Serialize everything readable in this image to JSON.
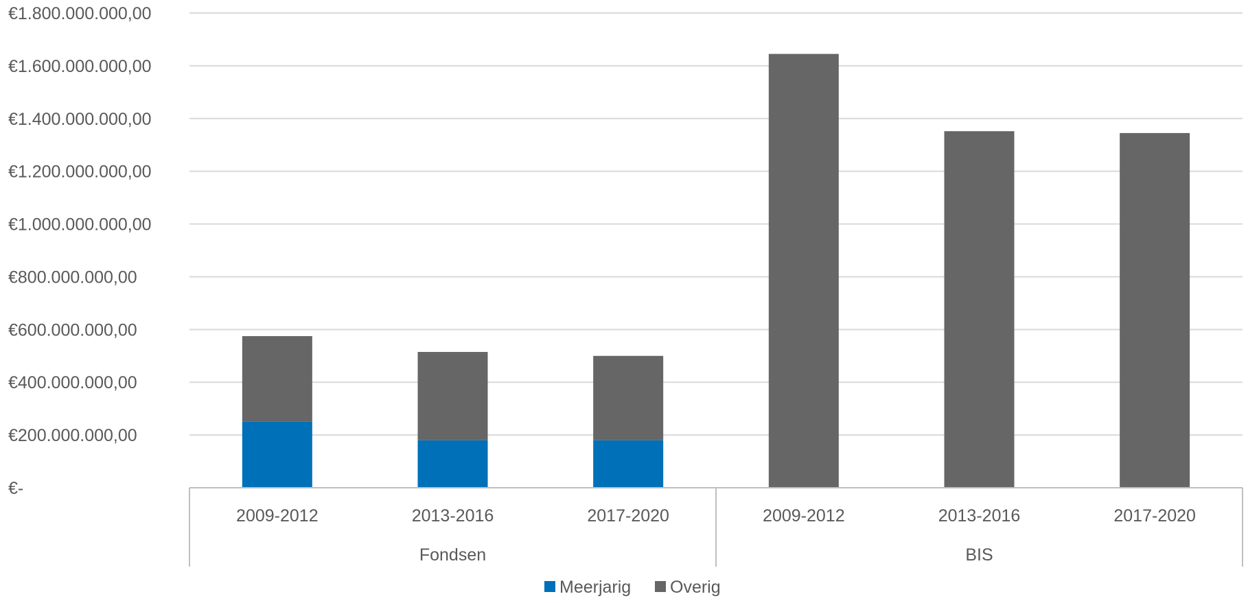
{
  "chart_data": {
    "type": "bar",
    "stacked": true,
    "groups": [
      {
        "label": "Fondsen",
        "categories": [
          "2009-2012",
          "2013-2016",
          "2017-2020"
        ]
      },
      {
        "label": "BIS",
        "categories": [
          "2009-2012",
          "2013-2016",
          "2017-2020"
        ]
      }
    ],
    "series": [
      {
        "name": "Meerjarig",
        "color": "#0070B8",
        "values": [
          250000000,
          180000000,
          180000000,
          0,
          0,
          0
        ]
      },
      {
        "name": "Overig",
        "color": "#666666",
        "values": [
          325000000,
          335000000,
          320000000,
          1645000000,
          1352000000,
          1345000000
        ]
      }
    ],
    "ylim": [
      0,
      1800000000
    ],
    "yticks": [
      {
        "value": 0,
        "label": "€-"
      },
      {
        "value": 200000000,
        "label": "€200.000.000,00"
      },
      {
        "value": 400000000,
        "label": "€400.000.000,00"
      },
      {
        "value": 600000000,
        "label": "€600.000.000,00"
      },
      {
        "value": 800000000,
        "label": "€800.000.000,00"
      },
      {
        "value": 1000000000,
        "label": "€1.000.000.000,00"
      },
      {
        "value": 1200000000,
        "label": "€1.200.000.000,00"
      },
      {
        "value": 1400000000,
        "label": "€1.400.000.000,00"
      },
      {
        "value": 1600000000,
        "label": "€1.600.000.000,00"
      },
      {
        "value": 1800000000,
        "label": "€1.800.000.000,00"
      }
    ],
    "grid": true,
    "legend_position": "bottom-center",
    "colors": {
      "gridline": "#D9D9D9",
      "axis": "#BFBFBF",
      "text": "#595959"
    }
  }
}
